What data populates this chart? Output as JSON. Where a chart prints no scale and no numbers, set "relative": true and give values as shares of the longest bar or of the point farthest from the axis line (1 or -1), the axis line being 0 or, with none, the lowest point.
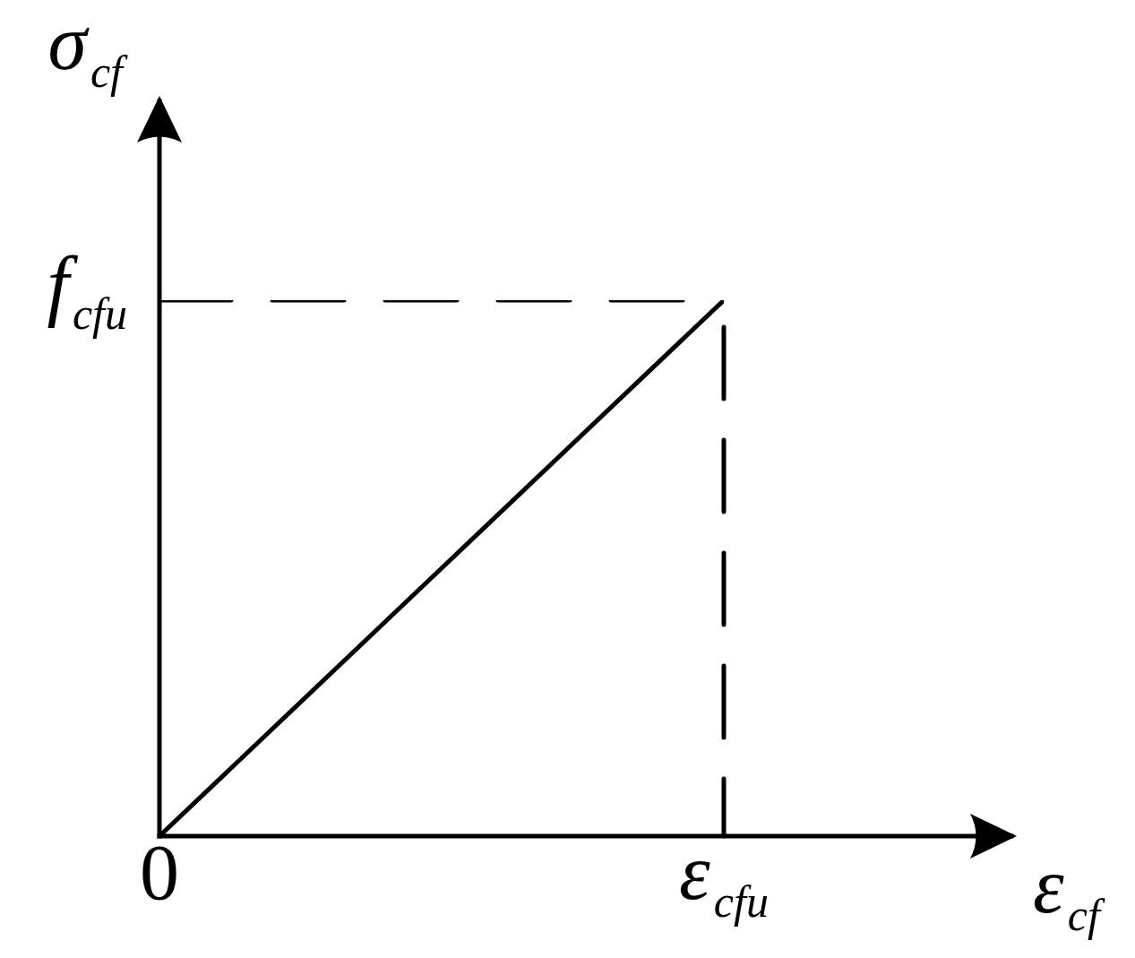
{
  "chart_data": {
    "type": "line",
    "relative": true,
    "xlabel": "ε$_{cf}$",
    "ylabel": "σ$_{cf}$",
    "line_style": "solid",
    "categories": [
      "0",
      "ε$_{cfu}$"
    ],
    "series": [
      {
        "color": "#000000",
        "values": [
          0,
          1
        ]
      },
      {
        "name": "f$_{cfu}$",
        "color": "#000000",
        "values": [
          1,
          1
        ],
        "line_style": "dashed"
      }
    ],
    "ref_lines": [
      {
        "axis": "x",
        "value": "0",
        "color": "#000000",
        "line_style": "solid"
      },
      {
        "axis": "x",
        "value": "ε$_{cfu}$",
        "color": "#000000",
        "line_style": "dashed"
      }
    ]
  }
}
